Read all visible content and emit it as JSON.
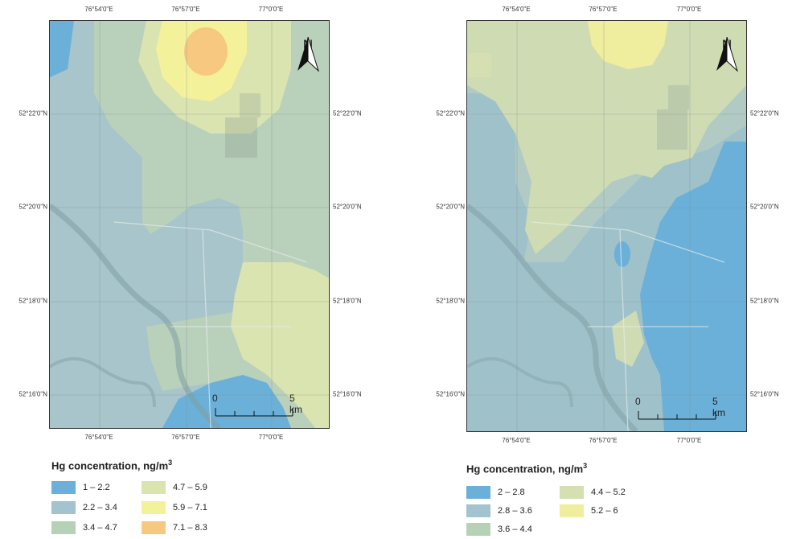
{
  "left_map": {
    "lon_labels": [
      "76°54'0\"E",
      "76°57'0\"E",
      "77°0'0\"E"
    ],
    "lat_labels": [
      "52°22'0\"N",
      "52°20'0\"N",
      "52°18'0\"N",
      "52°16'0\"N"
    ],
    "north_label": "N",
    "scale_start": "0",
    "scale_end": "5 km",
    "legend_title": "Hg concentration, ng/m",
    "legend_superscript": "3",
    "legend": [
      {
        "label": "1 – 2.2",
        "color": "#6ab0d8"
      },
      {
        "label": "2.2 – 3.4",
        "color": "#a2c3cf"
      },
      {
        "label": "3.4 – 4.7",
        "color": "#b6d1b6"
      },
      {
        "label": "4.7 – 5.9",
        "color": "#dae4b0"
      },
      {
        "label": "5.9 – 7.1",
        "color": "#f4f19b"
      },
      {
        "label": "7.1 – 8.3",
        "color": "#f6c880"
      }
    ]
  },
  "right_map": {
    "lon_labels": [
      "76°54'0\"E",
      "76°57'0\"E",
      "77°0'0\"E"
    ],
    "lat_labels": [
      "52°22'0\"N",
      "52°20'0\"N",
      "52°18'0\"N",
      "52°16'0\"N"
    ],
    "north_label": "N",
    "scale_start": "0",
    "scale_end": "5 km",
    "legend_title": "Hg concentration, ng/m",
    "legend_superscript": "3",
    "legend": [
      {
        "label": "2 – 2.8",
        "color": "#6ab0d8"
      },
      {
        "label": "2.8 – 3.6",
        "color": "#a2c3cf"
      },
      {
        "label": "3.6 – 4.4",
        "color": "#b6d1b6"
      },
      {
        "label": "4.4 – 5.2",
        "color": "#d5dfb1"
      },
      {
        "label": "5.2 – 6",
        "color": "#eeee9e"
      }
    ]
  }
}
